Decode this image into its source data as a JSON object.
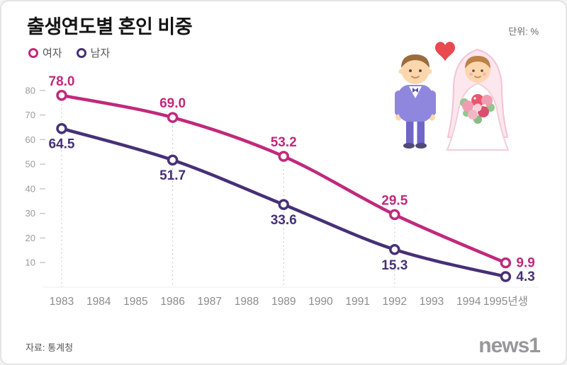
{
  "header": {
    "title": "출생연도별 혼인 비중",
    "unit_label": "단위: %"
  },
  "legend": [
    {
      "label": "여자",
      "color": "#c0297b"
    },
    {
      "label": "남자",
      "color": "#463077"
    }
  ],
  "chart_data": {
    "type": "line",
    "title": "출생연도별 혼인 비중",
    "unit": "%",
    "x_tick_labels": [
      "1983",
      "1984",
      "1985",
      "1986",
      "1987",
      "1988",
      "1989",
      "1990",
      "1991",
      "1992",
      "1993",
      "1994",
      "1995년생"
    ],
    "labeled_x_indices": [
      0,
      3,
      6,
      9,
      12
    ],
    "labeled_years": [
      1983,
      1986,
      1989,
      1992,
      1995
    ],
    "y_ticks": [
      10,
      20,
      30,
      40,
      50,
      60,
      70,
      80
    ],
    "ylim": [
      0,
      88
    ],
    "grid": "dashed vertical guides at labeled points",
    "legend_position": "top-left",
    "series": [
      {
        "name": "여자",
        "color": "#c0297b",
        "values": [
          78.0,
          69.0,
          53.2,
          29.5,
          9.9
        ]
      },
      {
        "name": "남자",
        "color": "#463077",
        "values": [
          64.5,
          51.7,
          33.6,
          15.3,
          4.3
        ]
      }
    ]
  },
  "footer": {
    "source": "자료: 통계청",
    "logo_text": "news1"
  }
}
